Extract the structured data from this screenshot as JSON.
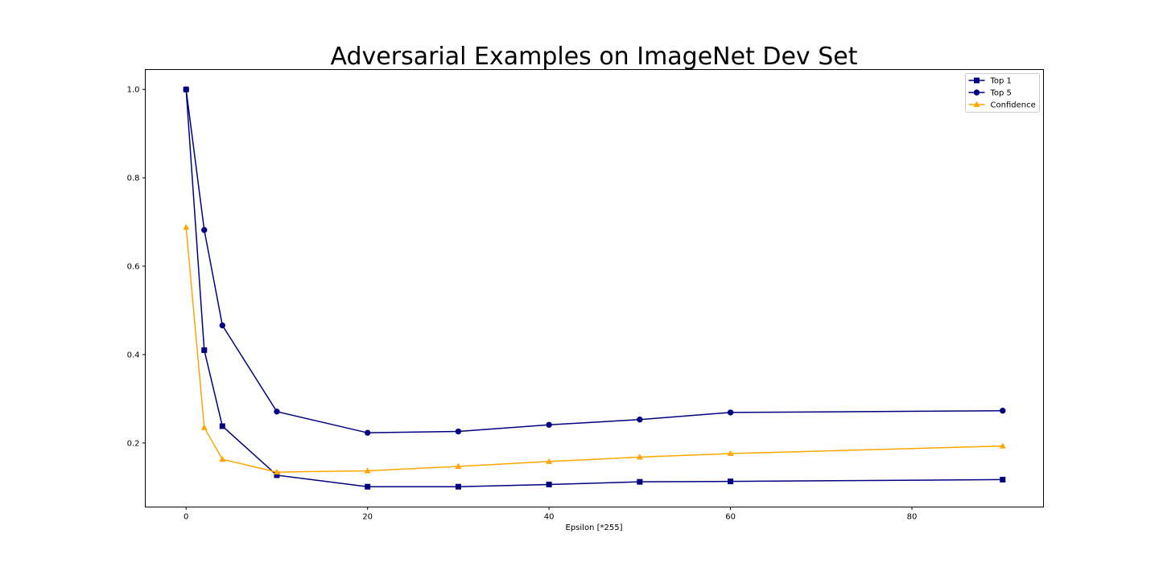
{
  "chart_data": {
    "type": "line",
    "title": "Adversarial Examples on ImageNet Dev Set",
    "xlabel": "Epsilon [*255]",
    "ylabel": "",
    "xlim": [
      -4.5,
      94.5
    ],
    "ylim": [
      0.055,
      1.045
    ],
    "xticks": [
      0,
      20,
      40,
      60,
      80
    ],
    "yticks": [
      0.2,
      0.4,
      0.6,
      0.8,
      1.0
    ],
    "xtick_labels": [
      "0",
      "20",
      "40",
      "60",
      "80"
    ],
    "ytick_labels": [
      "0.2",
      "0.4",
      "0.6",
      "0.8",
      "1.0"
    ],
    "grid": false,
    "legend_position": "top-right",
    "x": [
      0,
      2,
      4,
      10,
      20,
      30,
      40,
      50,
      60,
      90
    ],
    "series": [
      {
        "name": "Top 1",
        "color": "#000080",
        "marker": "square",
        "values": [
          1.0,
          0.41,
          0.238,
          0.127,
          0.101,
          0.101,
          0.106,
          0.112,
          0.113,
          0.117
        ]
      },
      {
        "name": "Top 5",
        "color": "#000080",
        "marker": "circle",
        "values": [
          1.0,
          0.682,
          0.466,
          0.271,
          0.223,
          0.226,
          0.241,
          0.253,
          0.269,
          0.273
        ]
      },
      {
        "name": "Confidence",
        "color": "#ffa500",
        "marker": "triangle",
        "values": [
          0.688,
          0.235,
          0.163,
          0.134,
          0.137,
          0.147,
          0.158,
          0.168,
          0.176,
          0.193
        ]
      }
    ]
  }
}
